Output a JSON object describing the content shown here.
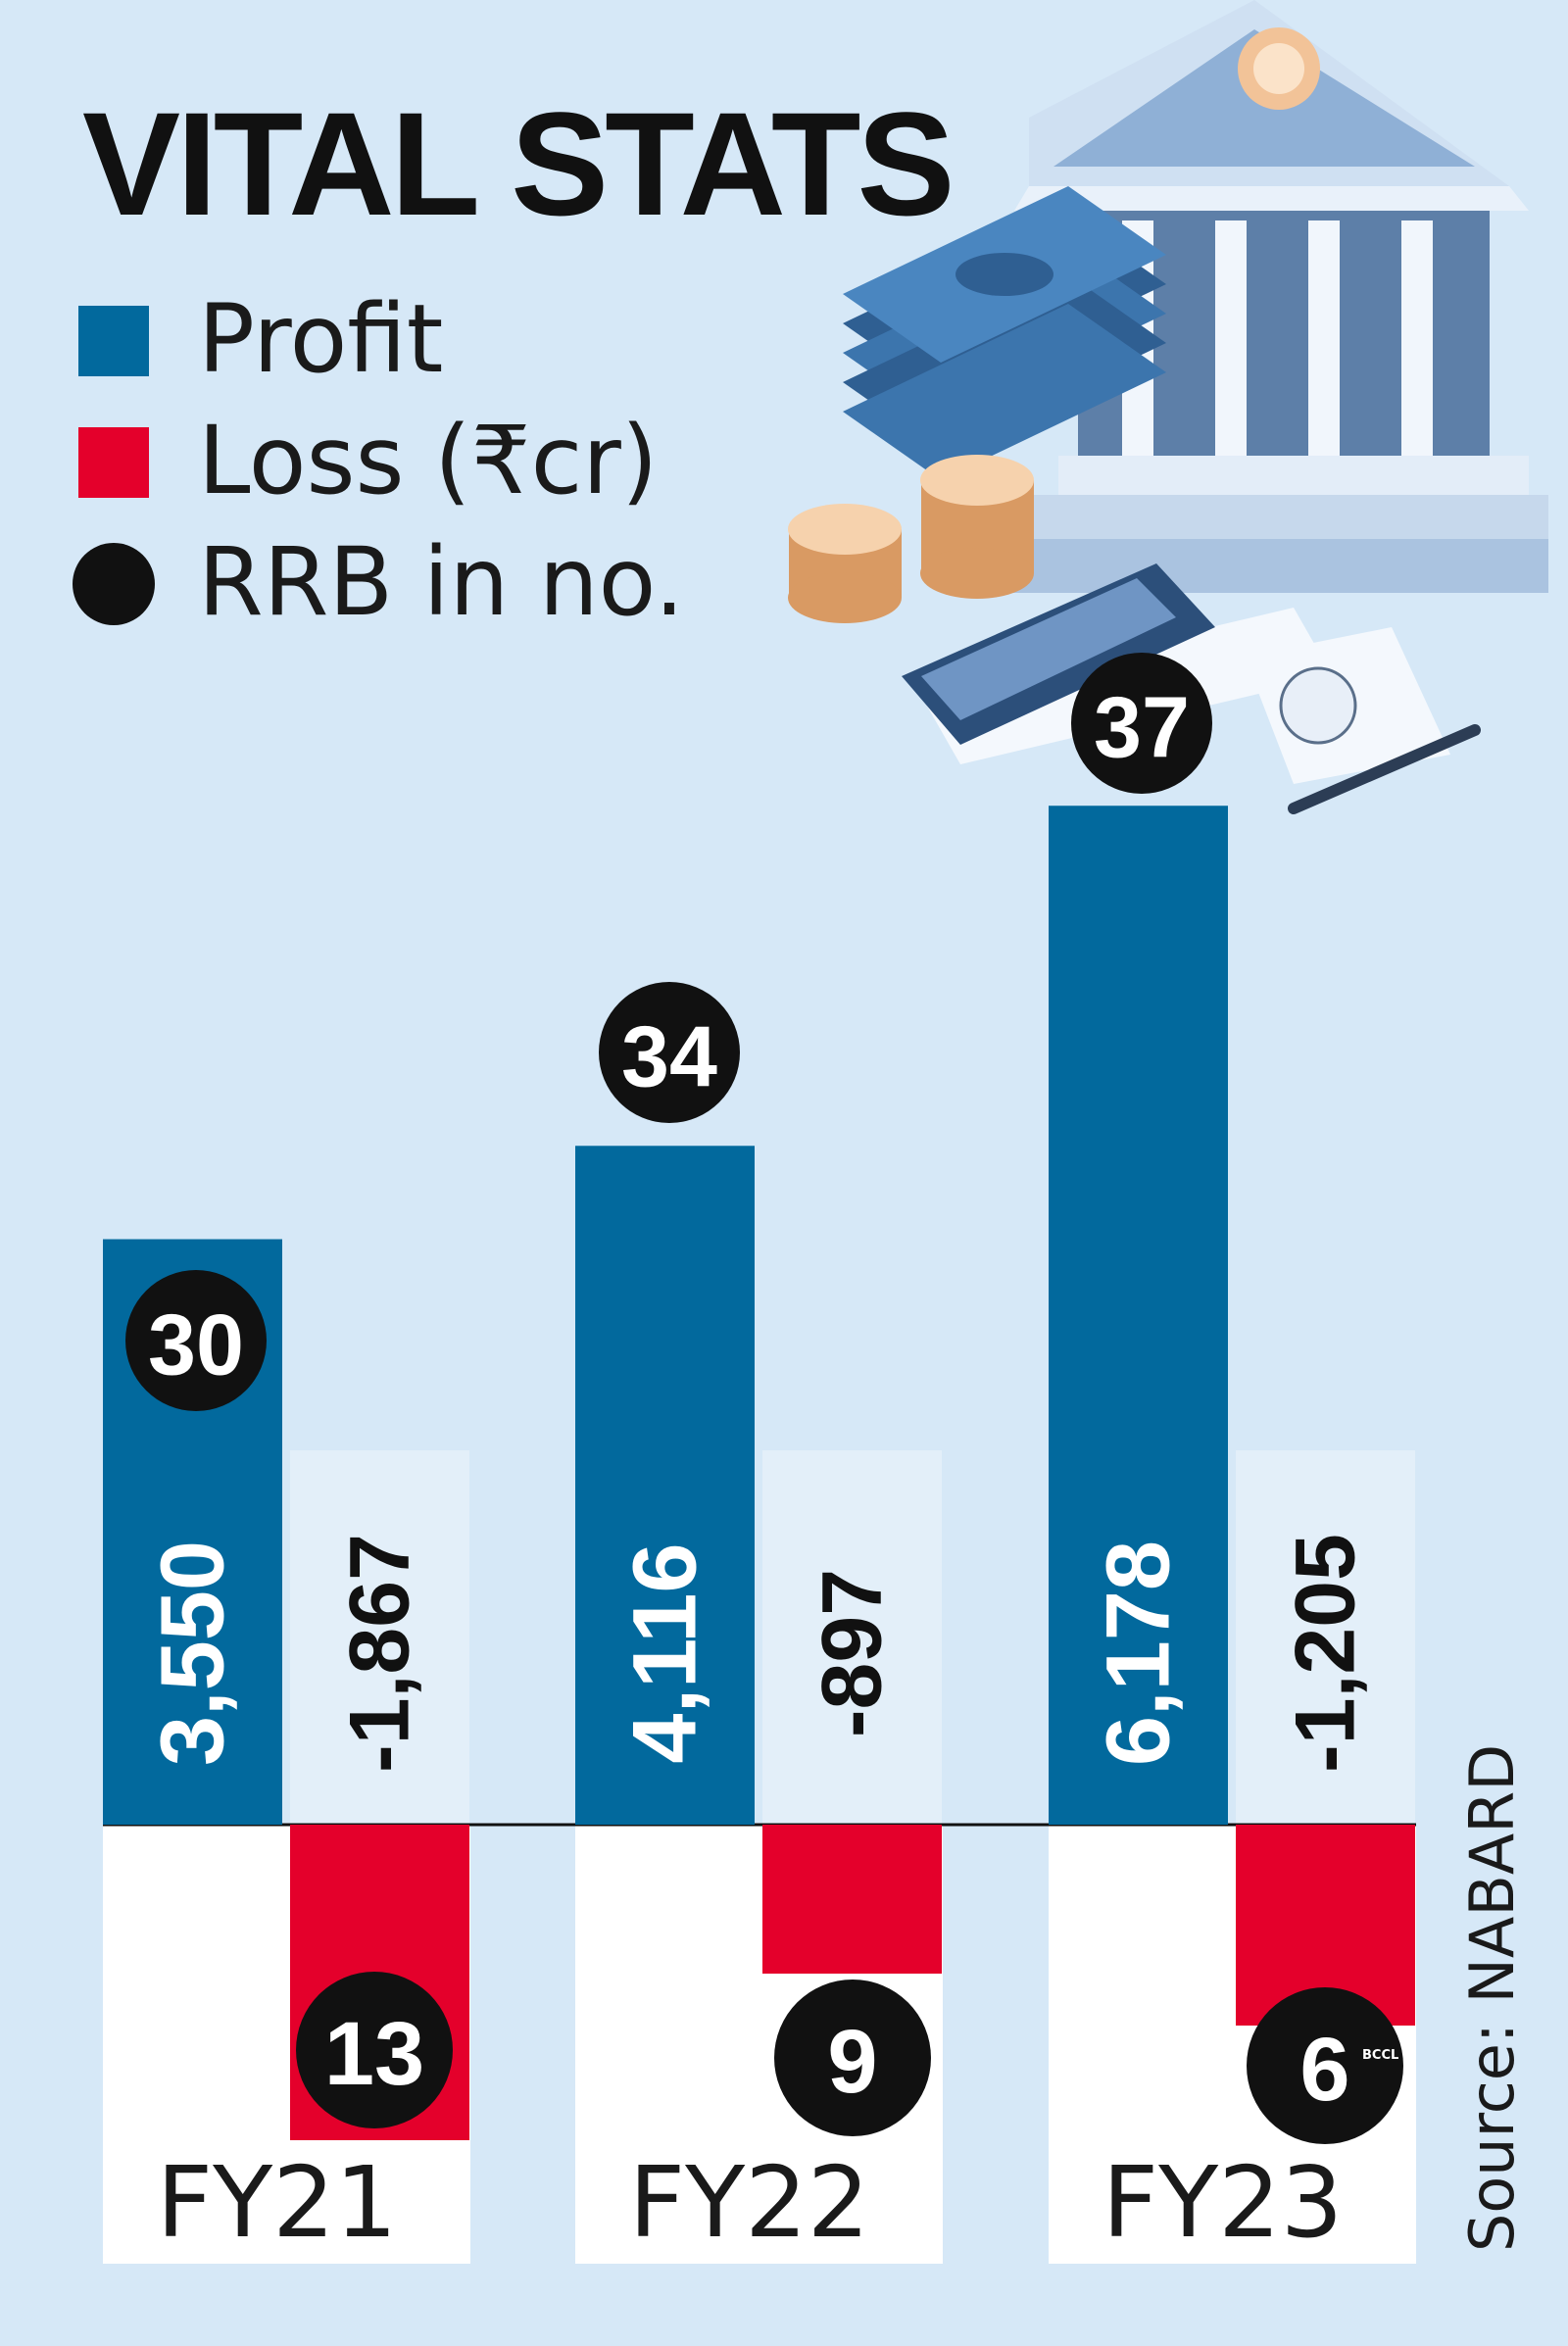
{
  "title": "VITAL STATS",
  "legend": [
    {
      "label": "Profit",
      "color": "#02699d",
      "shape": "square"
    },
    {
      "label": "Loss (₹cr)",
      "color": "#e4002b",
      "shape": "square"
    },
    {
      "label": "RRB in no.",
      "color": "#111111",
      "shape": "circle"
    }
  ],
  "source": "Source: NABARD",
  "watermark": "BCCL",
  "chart_data": {
    "type": "bar",
    "categories": [
      "FY21",
      "FY22",
      "FY23"
    ],
    "series": [
      {
        "name": "Profit",
        "values": [
          3550,
          4116,
          6178
        ],
        "labels": [
          "3,550",
          "4,116",
          "6,178"
        ],
        "counts": [
          30,
          34,
          37
        ],
        "color": "#02699d"
      },
      {
        "name": "Loss (₹cr)",
        "values": [
          -1867,
          -897,
          -1205
        ],
        "labels": [
          "-1,867",
          "-897",
          "-1,205"
        ],
        "counts": [
          13,
          9,
          6
        ],
        "color": "#e4002b"
      }
    ],
    "count_label": "RRB in no.",
    "unit": "₹cr",
    "grid": false,
    "legend_position": "top-left"
  }
}
